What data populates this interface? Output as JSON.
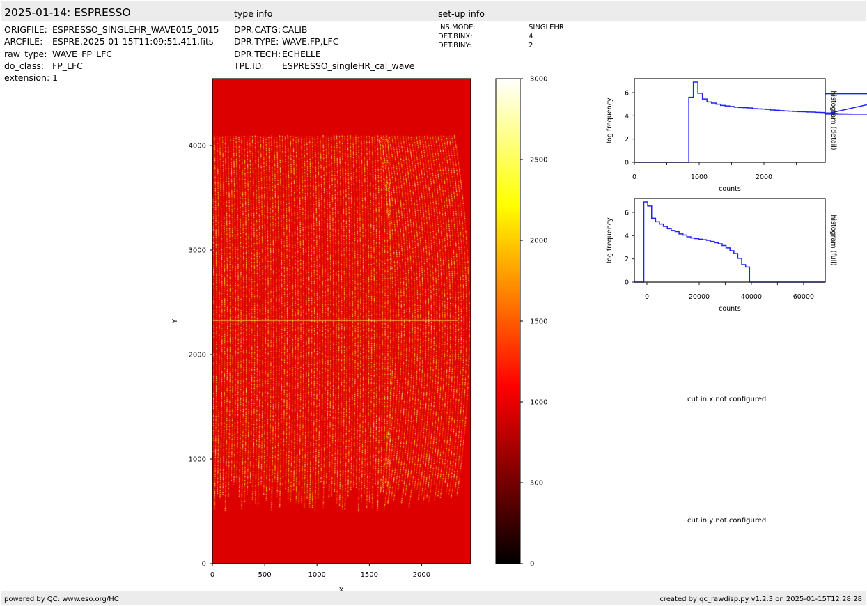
{
  "header": {
    "title": "2025-01-14: ESPRESSO",
    "type_info_label": "type info",
    "setup_info_label": "set-up info"
  },
  "file_info": [
    {
      "key": "ORIGFILE:",
      "value": "ESPRESSO_SINGLEHR_WAVE015_0015"
    },
    {
      "key": "ARCFILE:",
      "value": "ESPRE.2025-01-15T11:09:51.411.fits"
    },
    {
      "key": "raw_type:",
      "value": "WAVE_FP_LFC"
    },
    {
      "key": "do_class:",
      "value": "FP_LFC"
    },
    {
      "key": "extension:",
      "value": "1"
    }
  ],
  "type_info": [
    {
      "key": "DPR.CATG:",
      "value": "CALIB"
    },
    {
      "key": "DPR.TYPE:",
      "value": "WAVE,FP,LFC"
    },
    {
      "key": "DPR.TECH:",
      "value": "ECHELLE"
    },
    {
      "key": "TPL.ID:",
      "value": "ESPRESSO_singleHR_cal_wave"
    }
  ],
  "setup_info": [
    {
      "key": "INS.MODE:",
      "value": "SINGLEHR"
    },
    {
      "key": "DET.BINX:",
      "value": "4"
    },
    {
      "key": "DET.BINY:",
      "value": "2"
    }
  ],
  "messages": {
    "cut_x": "cut in x not configured",
    "cut_y": "cut in y not configured"
  },
  "footer": {
    "left": "powered by QC: www.eso.org/HC",
    "right": "created by qc_rawdisp.py v1.2.3 on 2025-01-15T12:28:28"
  },
  "colors": {
    "line": "#2020ff",
    "bar": "#ececec",
    "colormap": "hot"
  },
  "chart_data": [
    {
      "type": "heatmap",
      "xlabel": "X",
      "ylabel": "Y",
      "xlim": [
        0,
        2470
      ],
      "ylim": [
        0,
        4640
      ],
      "xticks": [
        0,
        500,
        1000,
        1500,
        2000
      ],
      "yticks": [
        0,
        1000,
        2000,
        3000,
        4000
      ],
      "colorbar": {
        "range": [
          0,
          3000
        ],
        "ticks": [
          0,
          500,
          1000,
          1500,
          2000,
          2500,
          3000
        ],
        "colormap": "hot"
      }
    },
    {
      "type": "histogram",
      "xlabel": "counts",
      "ylabel": "log frequency",
      "side_label": "histogram (detail)",
      "xlim": [
        0,
        2946
      ],
      "ylim": [
        0,
        7.2
      ],
      "xticks": [
        0,
        1000,
        2000
      ],
      "yticks": [
        0,
        2,
        4,
        6
      ],
      "bin_edges_start": 0,
      "bin_width": 70,
      "values": [
        0,
        0,
        0,
        0,
        0,
        0,
        0,
        0,
        0,
        0,
        0,
        0,
        5.6,
        6.9,
        5.95,
        5.45,
        5.2,
        5.1,
        5.0,
        4.9,
        4.85,
        4.8,
        4.75,
        4.72,
        4.7,
        4.68,
        4.62,
        4.6,
        4.58,
        4.55,
        4.5,
        4.48,
        4.45,
        4.42,
        4.4,
        4.38,
        4.36,
        4.35,
        4.33,
        4.32,
        4.3,
        4.28,
        4.25,
        4.24,
        4.22,
        4.2,
        4.18,
        4.17,
        4.16,
        4.15,
        4.15,
        4.15,
        4.15,
        4.15,
        4.15,
        4.15,
        4.15,
        4.15,
        4.15,
        4.15,
        4.15,
        4.15,
        5.9
      ]
    },
    {
      "type": "histogram",
      "xlabel": "counts",
      "ylabel": "log frequency",
      "side_label": "histogram (full)",
      "xlim": [
        -4800,
        68300
      ],
      "ylim": [
        0,
        7.2
      ],
      "xticks": [
        0,
        20000,
        40000,
        60000
      ],
      "yticks": [
        0,
        2,
        4,
        6
      ],
      "bin_edges_start": -1200,
      "bin_width": 1500,
      "values": [
        6.9,
        6.55,
        5.5,
        5.2,
        5.0,
        4.8,
        4.6,
        4.45,
        4.35,
        4.15,
        4.05,
        3.9,
        3.8,
        3.75,
        3.7,
        3.65,
        3.6,
        3.5,
        3.4,
        3.3,
        3.15,
        2.95,
        2.7,
        2.45,
        2.05,
        1.5,
        1.3
      ]
    }
  ]
}
